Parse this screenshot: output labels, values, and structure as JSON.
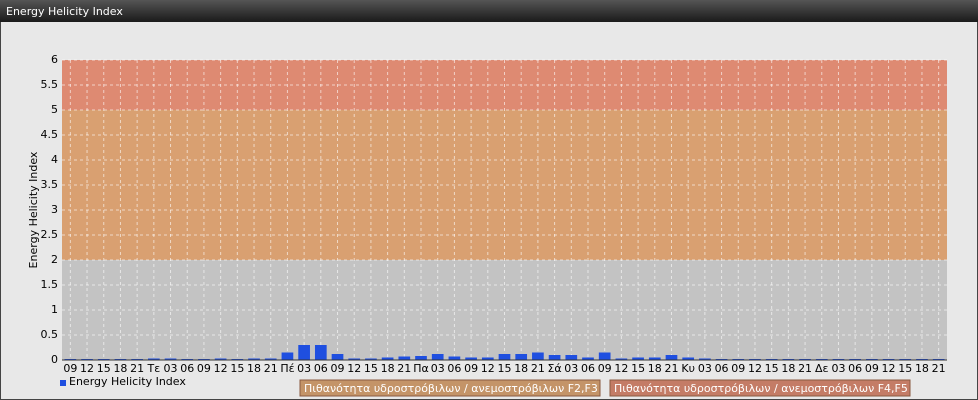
{
  "chart_data": {
    "type": "bar",
    "title": "Energy Helicity Index",
    "y_label": "Energy Helicity Index",
    "categories": [
      "09",
      "12",
      "15",
      "18",
      "21",
      "Τε",
      "03",
      "06",
      "09",
      "12",
      "15",
      "18",
      "21",
      "Πέ",
      "03",
      "06",
      "09",
      "12",
      "15",
      "18",
      "21",
      "Πα",
      "03",
      "06",
      "09",
      "12",
      "15",
      "18",
      "21",
      "Σά",
      "03",
      "06",
      "09",
      "12",
      "15",
      "18",
      "21",
      "Κυ",
      "03",
      "06",
      "09",
      "12",
      "15",
      "18",
      "21",
      "Δε",
      "03",
      "06",
      "09",
      "12",
      "15",
      "18",
      "21"
    ],
    "series": [
      {
        "name": "Energy Helicity Index",
        "color": "#1f4fe0",
        "values": [
          0.02,
          0.02,
          0.02,
          0.02,
          0.02,
          0.03,
          0.03,
          0.02,
          0.02,
          0.03,
          0.02,
          0.03,
          0.03,
          0.15,
          0.3,
          0.3,
          0.12,
          0.03,
          0.03,
          0.05,
          0.07,
          0.08,
          0.12,
          0.07,
          0.05,
          0.05,
          0.12,
          0.12,
          0.15,
          0.1,
          0.1,
          0.05,
          0.15,
          0.03,
          0.05,
          0.05,
          0.1,
          0.05,
          0.03,
          0.02,
          0.02,
          0.02,
          0.02,
          0.02,
          0.02,
          0.02,
          0.02,
          0.02,
          0.02,
          0.02,
          0.02,
          0.02,
          0.02
        ]
      }
    ],
    "bands": [
      {
        "from": 0,
        "to": 2,
        "color": "#c3c3c3"
      },
      {
        "from": 2,
        "to": 5,
        "color": "#d9a071",
        "label": "Πιθανότητα υδροστρόβιλων / ανεμοστρόβιλων F2,F3",
        "legend_color": "#c49468"
      },
      {
        "from": 5,
        "to": 6,
        "color": "#de8a72",
        "label": "Πιθανότητα υδροστρόβιλων / ανεμοστρόβιλων F4,F5",
        "legend_color": "#c47c66"
      }
    ],
    "ylim": [
      0,
      6
    ],
    "yticks": [
      0,
      0.5,
      1,
      1.5,
      2,
      2.5,
      3,
      3.5,
      4,
      4.5,
      5,
      5.5,
      6
    ],
    "grid": true
  }
}
